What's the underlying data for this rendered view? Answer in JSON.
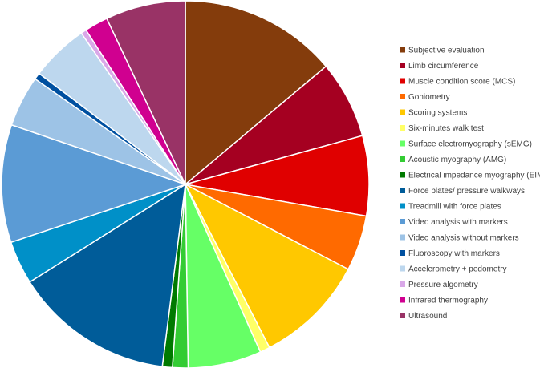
{
  "chart_data": {
    "type": "pie",
    "title": "",
    "legend_position": "right",
    "slices": [
      {
        "label": "Subjective evaluation",
        "value": 14.2,
        "color": "#843C0C"
      },
      {
        "label": "Limb circumference",
        "value": 7.0,
        "color": "#A50021"
      },
      {
        "label": "Muscle condition score (MCS)",
        "value": 7.2,
        "color": "#E00000"
      },
      {
        "label": "Goniometry",
        "value": 5.0,
        "color": "#FF6A00"
      },
      {
        "label": "Scoring systems",
        "value": 10.0,
        "color": "#FFC800"
      },
      {
        "label": "Six-minutes walk test",
        "value": 0.9,
        "color": "#FFFF66"
      },
      {
        "label": "Surface electromyography (sEMG)",
        "value": 6.6,
        "color": "#66FF66"
      },
      {
        "label": "Acoustic myography (AMG)",
        "value": 1.4,
        "color": "#33CC33"
      },
      {
        "label": "Electrical impedance myography (EIM)",
        "value": 0.9,
        "color": "#007A00"
      },
      {
        "label": "Force plates/ pressure walkways",
        "value": 14.4,
        "color": "#005C99"
      },
      {
        "label": "Treadmill with force plates",
        "value": 3.9,
        "color": "#0090C8"
      },
      {
        "label": "Video analysis with markers",
        "value": 10.6,
        "color": "#5B9BD5"
      },
      {
        "label": "Video analysis without markers",
        "value": 4.6,
        "color": "#9DC3E6"
      },
      {
        "label": "Fluoroscopy with markers",
        "value": 0.6,
        "color": "#0050A0"
      },
      {
        "label": "Accelerometry + pedometry",
        "value": 5.2,
        "color": "#BDD7EE"
      },
      {
        "label": "Pressure algometry",
        "value": 0.5,
        "color": "#D9A8E8"
      },
      {
        "label": "Infrared thermography",
        "value": 2.1,
        "color": "#D00090"
      },
      {
        "label": "Ultrasound",
        "value": 7.2,
        "color": "#993366"
      }
    ]
  }
}
